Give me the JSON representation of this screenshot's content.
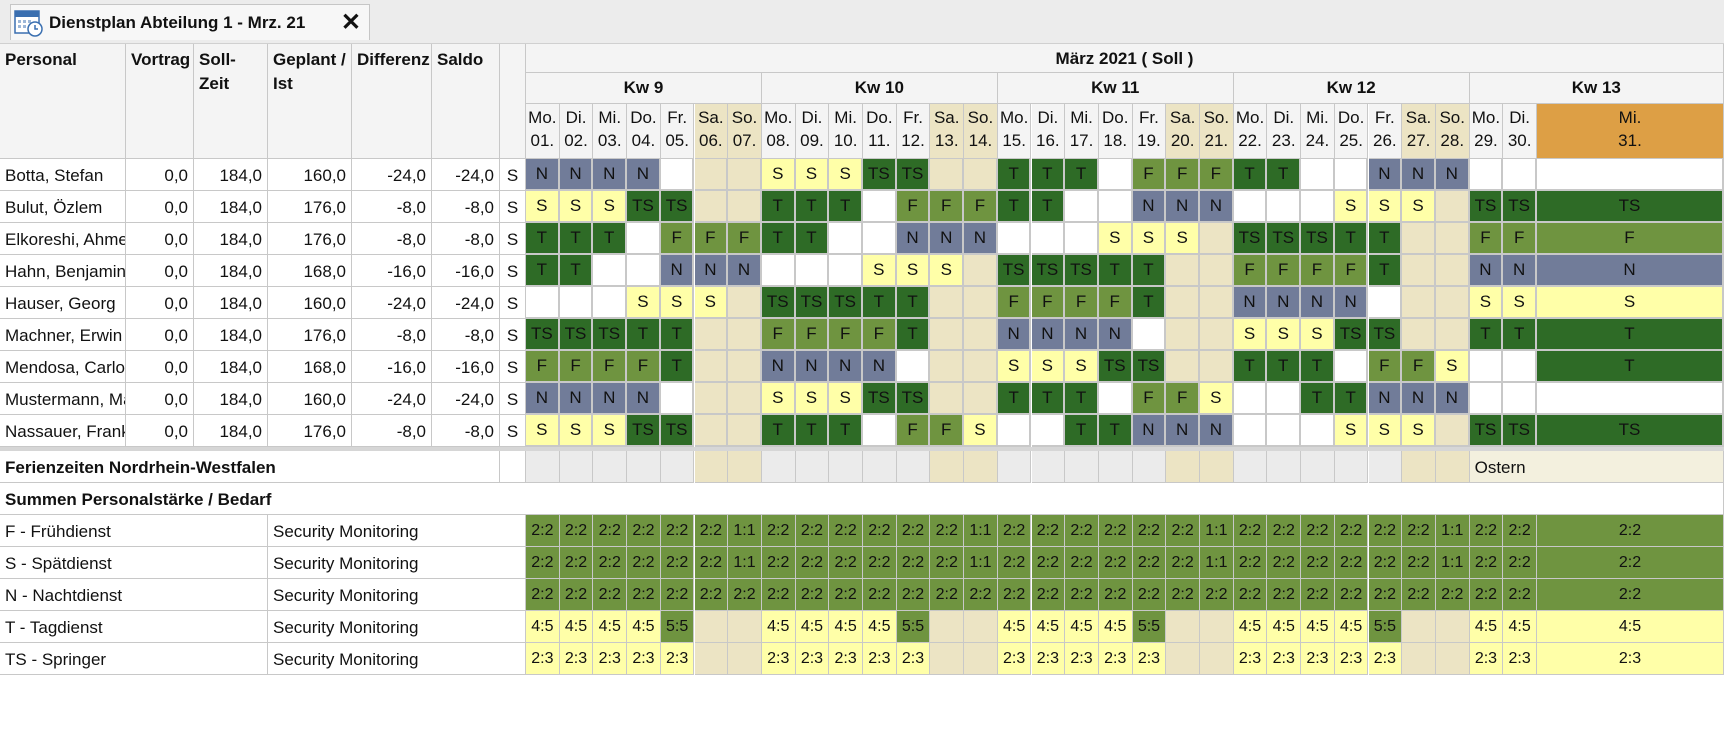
{
  "tab": {
    "title": "Dienstplan Abteilung 1 - Mrz. 21"
  },
  "colors": {
    "N": "#717c99",
    "S": "#ffffa8",
    "T": "#2e6b26",
    "TS": "#2e6b26",
    "F": "#6f9440",
    "weekend": "#ece4c4",
    "holiday_header": "#dd9f45",
    "cov_ok": "#6f9440",
    "cov_low": "#ffffa8"
  },
  "headers": {
    "personal": "Personal",
    "vortrag": "Vortrag",
    "soll": "Soll-Zeit",
    "geplant": "Geplant / Ist",
    "differenz": "Differenz",
    "saldo": "Saldo",
    "month": "März 2021 ( Soll )"
  },
  "weeks": [
    "Kw 9",
    "Kw 10",
    "Kw 11",
    "Kw 12",
    "Kw 13"
  ],
  "days": [
    {
      "d": "Mo.",
      "n": "01."
    },
    {
      "d": "Di.",
      "n": "02."
    },
    {
      "d": "Mi.",
      "n": "03."
    },
    {
      "d": "Do.",
      "n": "04."
    },
    {
      "d": "Fr.",
      "n": "05."
    },
    {
      "d": "Sa.",
      "n": "06."
    },
    {
      "d": "So.",
      "n": "07."
    },
    {
      "d": "Mo.",
      "n": "08."
    },
    {
      "d": "Di.",
      "n": "09."
    },
    {
      "d": "Mi.",
      "n": "10."
    },
    {
      "d": "Do.",
      "n": "11."
    },
    {
      "d": "Fr.",
      "n": "12."
    },
    {
      "d": "Sa.",
      "n": "13."
    },
    {
      "d": "So.",
      "n": "14."
    },
    {
      "d": "Mo.",
      "n": "15."
    },
    {
      "d": "Di.",
      "n": "16."
    },
    {
      "d": "Mi.",
      "n": "17."
    },
    {
      "d": "Do.",
      "n": "18."
    },
    {
      "d": "Fr.",
      "n": "19."
    },
    {
      "d": "Sa.",
      "n": "20."
    },
    {
      "d": "So.",
      "n": "21."
    },
    {
      "d": "Mo.",
      "n": "22."
    },
    {
      "d": "Di.",
      "n": "23."
    },
    {
      "d": "Mi.",
      "n": "24."
    },
    {
      "d": "Do.",
      "n": "25."
    },
    {
      "d": "Fr.",
      "n": "26."
    },
    {
      "d": "Sa.",
      "n": "27."
    },
    {
      "d": "So.",
      "n": "28."
    },
    {
      "d": "Mo.",
      "n": "29."
    },
    {
      "d": "Di.",
      "n": "30."
    },
    {
      "d": "Mi.",
      "n": "31."
    }
  ],
  "employees": [
    {
      "name": "Botta, Stefan",
      "vortrag": "0,0",
      "soll": "184,0",
      "geplant": "160,0",
      "differenz": "-24,0",
      "saldo": "-24,0",
      "flag": "S",
      "shifts": [
        "N",
        "N",
        "N",
        "N",
        "",
        "",
        "",
        "S",
        "S",
        "S",
        "TS",
        "TS",
        "",
        "",
        "T",
        "T",
        "T",
        "",
        "F",
        "F",
        "F",
        "T",
        "T",
        "",
        "",
        "N",
        "N",
        "N",
        "",
        "",
        ""
      ]
    },
    {
      "name": "Bulut, Özlem",
      "vortrag": "0,0",
      "soll": "184,0",
      "geplant": "176,0",
      "differenz": "-8,0",
      "saldo": "-8,0",
      "flag": "S",
      "shifts": [
        "S",
        "S",
        "S",
        "TS",
        "TS",
        "",
        "",
        "T",
        "T",
        "T",
        "",
        "F",
        "F",
        "F",
        "T",
        "T",
        "",
        "",
        "N",
        "N",
        "N",
        "",
        "",
        "",
        "S",
        "S",
        "S",
        "",
        "TS",
        "TS",
        "TS"
      ]
    },
    {
      "name": "Elkoreshi, Ahmed",
      "vortrag": "0,0",
      "soll": "184,0",
      "geplant": "176,0",
      "differenz": "-8,0",
      "saldo": "-8,0",
      "flag": "S",
      "shifts": [
        "T",
        "T",
        "T",
        "",
        "F",
        "F",
        "F",
        "T",
        "T",
        "",
        "",
        "N",
        "N",
        "N",
        "",
        "",
        "",
        "S",
        "S",
        "S",
        "",
        "TS",
        "TS",
        "TS",
        "T",
        "T",
        "",
        "",
        "F",
        "F",
        "F"
      ]
    },
    {
      "name": "Hahn, Benjamin",
      "vortrag": "0,0",
      "soll": "184,0",
      "geplant": "168,0",
      "differenz": "-16,0",
      "saldo": "-16,0",
      "flag": "S",
      "shifts": [
        "T",
        "T",
        "",
        "",
        "N",
        "N",
        "N",
        "",
        "",
        "",
        "S",
        "S",
        "S",
        "",
        "TS",
        "TS",
        "TS",
        "T",
        "T",
        "",
        "",
        "F",
        "F",
        "F",
        "F",
        "T",
        "",
        "",
        "N",
        "N",
        "N"
      ]
    },
    {
      "name": "Hauser, Georg",
      "vortrag": "0,0",
      "soll": "184,0",
      "geplant": "160,0",
      "differenz": "-24,0",
      "saldo": "-24,0",
      "flag": "S",
      "shifts": [
        "",
        "",
        "",
        "S",
        "S",
        "S",
        "",
        "TS",
        "TS",
        "TS",
        "T",
        "T",
        "",
        "",
        "F",
        "F",
        "F",
        "F",
        "T",
        "",
        "",
        "N",
        "N",
        "N",
        "N",
        "",
        "",
        "",
        "S",
        "S",
        "S"
      ]
    },
    {
      "name": "Machner, Erwin",
      "vortrag": "0,0",
      "soll": "184,0",
      "geplant": "176,0",
      "differenz": "-8,0",
      "saldo": "-8,0",
      "flag": "S",
      "shifts": [
        "TS",
        "TS",
        "TS",
        "T",
        "T",
        "",
        "",
        "F",
        "F",
        "F",
        "F",
        "T",
        "",
        "",
        "N",
        "N",
        "N",
        "N",
        "",
        "",
        "",
        "S",
        "S",
        "S",
        "TS",
        "TS",
        "",
        "",
        "T",
        "T",
        "T"
      ]
    },
    {
      "name": "Mendosa, Carlos",
      "vortrag": "0,0",
      "soll": "184,0",
      "geplant": "168,0",
      "differenz": "-16,0",
      "saldo": "-16,0",
      "flag": "S",
      "shifts": [
        "F",
        "F",
        "F",
        "F",
        "T",
        "",
        "",
        "N",
        "N",
        "N",
        "N",
        "",
        "",
        "",
        "S",
        "S",
        "S",
        "TS",
        "TS",
        "",
        "",
        "T",
        "T",
        "T",
        "",
        "F",
        "F",
        "S",
        "",
        "",
        "T"
      ]
    },
    {
      "name": "Mustermann, Max",
      "vortrag": "0,0",
      "soll": "184,0",
      "geplant": "160,0",
      "differenz": "-24,0",
      "saldo": "-24,0",
      "flag": "S",
      "shifts": [
        "N",
        "N",
        "N",
        "N",
        "",
        "",
        "",
        "S",
        "S",
        "S",
        "TS",
        "TS",
        "",
        "",
        "T",
        "T",
        "T",
        "",
        "F",
        "F",
        "S",
        "",
        "",
        "T",
        "T",
        "N",
        "N",
        "N",
        "",
        "",
        ""
      ]
    },
    {
      "name": "Nassauer, Frank",
      "vortrag": "0,0",
      "soll": "184,0",
      "geplant": "176,0",
      "differenz": "-8,0",
      "saldo": "-8,0",
      "flag": "S",
      "shifts": [
        "S",
        "S",
        "S",
        "TS",
        "TS",
        "",
        "",
        "T",
        "T",
        "T",
        "",
        "F",
        "F",
        "S",
        "",
        "",
        "T",
        "T",
        "N",
        "N",
        "N",
        "",
        "",
        "",
        "S",
        "S",
        "S",
        "",
        "TS",
        "TS",
        "TS"
      ]
    }
  ],
  "holidays": {
    "label": "Ferienzeiten Nordrhein-Westfalen",
    "entry": "Ostern"
  },
  "summary": {
    "title": "Summen Personalstärke / Bedarf",
    "rows": [
      {
        "label": "F - Frühdienst",
        "unit": "Security Monitoring",
        "values": [
          "2:2",
          "2:2",
          "2:2",
          "2:2",
          "2:2",
          "2:2",
          "1:1",
          "2:2",
          "2:2",
          "2:2",
          "2:2",
          "2:2",
          "2:2",
          "1:1",
          "2:2",
          "2:2",
          "2:2",
          "2:2",
          "2:2",
          "2:2",
          "1:1",
          "2:2",
          "2:2",
          "2:2",
          "2:2",
          "2:2",
          "2:2",
          "1:1",
          "2:2",
          "2:2",
          "2:2"
        ],
        "low": []
      },
      {
        "label": "S - Spätdienst",
        "unit": "Security Monitoring",
        "values": [
          "2:2",
          "2:2",
          "2:2",
          "2:2",
          "2:2",
          "2:2",
          "1:1",
          "2:2",
          "2:2",
          "2:2",
          "2:2",
          "2:2",
          "2:2",
          "1:1",
          "2:2",
          "2:2",
          "2:2",
          "2:2",
          "2:2",
          "2:2",
          "1:1",
          "2:2",
          "2:2",
          "2:2",
          "2:2",
          "2:2",
          "2:2",
          "1:1",
          "2:2",
          "2:2",
          "2:2"
        ],
        "low": []
      },
      {
        "label": "N - Nachtdienst",
        "unit": "Security Monitoring",
        "values": [
          "2:2",
          "2:2",
          "2:2",
          "2:2",
          "2:2",
          "2:2",
          "2:2",
          "2:2",
          "2:2",
          "2:2",
          "2:2",
          "2:2",
          "2:2",
          "2:2",
          "2:2",
          "2:2",
          "2:2",
          "2:2",
          "2:2",
          "2:2",
          "2:2",
          "2:2",
          "2:2",
          "2:2",
          "2:2",
          "2:2",
          "2:2",
          "2:2",
          "2:2",
          "2:2",
          "2:2"
        ],
        "low": []
      },
      {
        "label": "T - Tagdienst",
        "unit": "Security Monitoring",
        "values": [
          "4:5",
          "4:5",
          "4:5",
          "4:5",
          "5:5",
          "",
          "",
          "4:5",
          "4:5",
          "4:5",
          "4:5",
          "5:5",
          "",
          "",
          "4:5",
          "4:5",
          "4:5",
          "4:5",
          "5:5",
          "",
          "",
          "4:5",
          "4:5",
          "4:5",
          "4:5",
          "5:5",
          "",
          "",
          "4:5",
          "4:5",
          "4:5"
        ],
        "low": [
          0,
          1,
          2,
          3,
          7,
          8,
          9,
          10,
          14,
          15,
          16,
          17,
          21,
          22,
          23,
          24,
          28,
          29,
          30
        ]
      },
      {
        "label": "TS - Springer",
        "unit": "Security Monitoring",
        "values": [
          "2:3",
          "2:3",
          "2:3",
          "2:3",
          "2:3",
          "",
          "",
          "2:3",
          "2:3",
          "2:3",
          "2:3",
          "2:3",
          "",
          "",
          "2:3",
          "2:3",
          "2:3",
          "2:3",
          "2:3",
          "",
          "",
          "2:3",
          "2:3",
          "2:3",
          "2:3",
          "2:3",
          "",
          "",
          "2:3",
          "2:3",
          "2:3"
        ],
        "low": [
          0,
          1,
          2,
          3,
          4,
          7,
          8,
          9,
          10,
          11,
          14,
          15,
          16,
          17,
          18,
          21,
          22,
          23,
          24,
          25,
          28,
          29,
          30
        ]
      }
    ]
  }
}
